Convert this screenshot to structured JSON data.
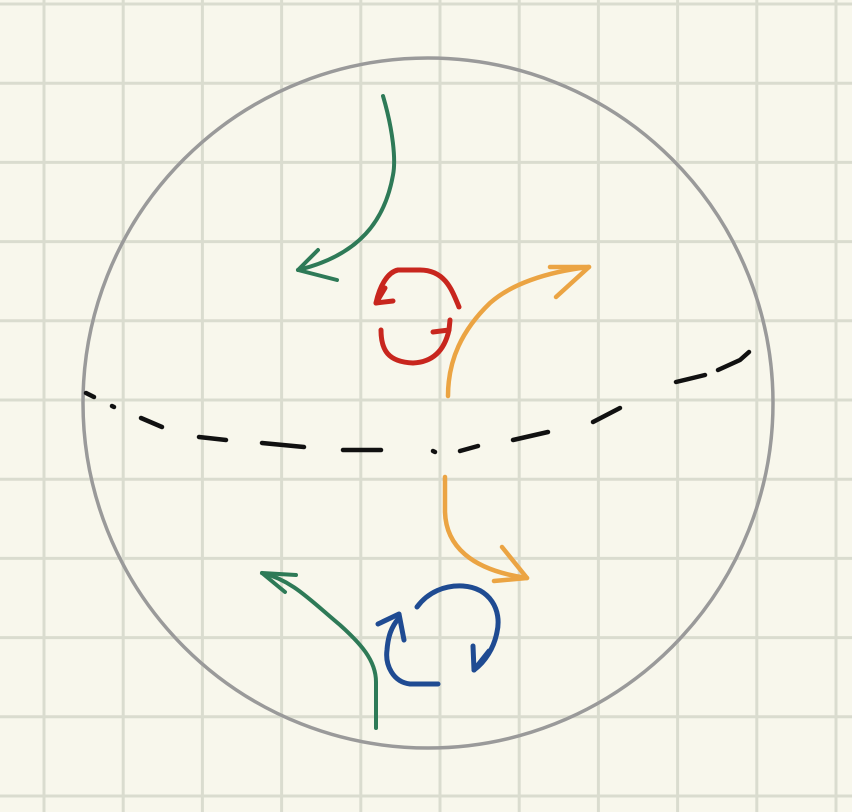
{
  "colors": {
    "paper": "#f8f7ec",
    "grid": "#dadccf",
    "sphere_outline": "#9a9a9a",
    "equator": "#111111",
    "green": "#2e7a57",
    "red": "#c8261e",
    "orange": "#eba443",
    "blue": "#1f4b92"
  },
  "elements": {
    "sphere": "circle",
    "equator": "dashed-line",
    "northern_hemisphere": [
      "green-curved-arrow-left",
      "red-rotation-counterclockwise",
      "orange-curved-arrow-right"
    ],
    "southern_hemisphere": [
      "green-curved-arrow-left",
      "blue-rotation-clockwise",
      "orange-curved-arrow-right"
    ]
  }
}
